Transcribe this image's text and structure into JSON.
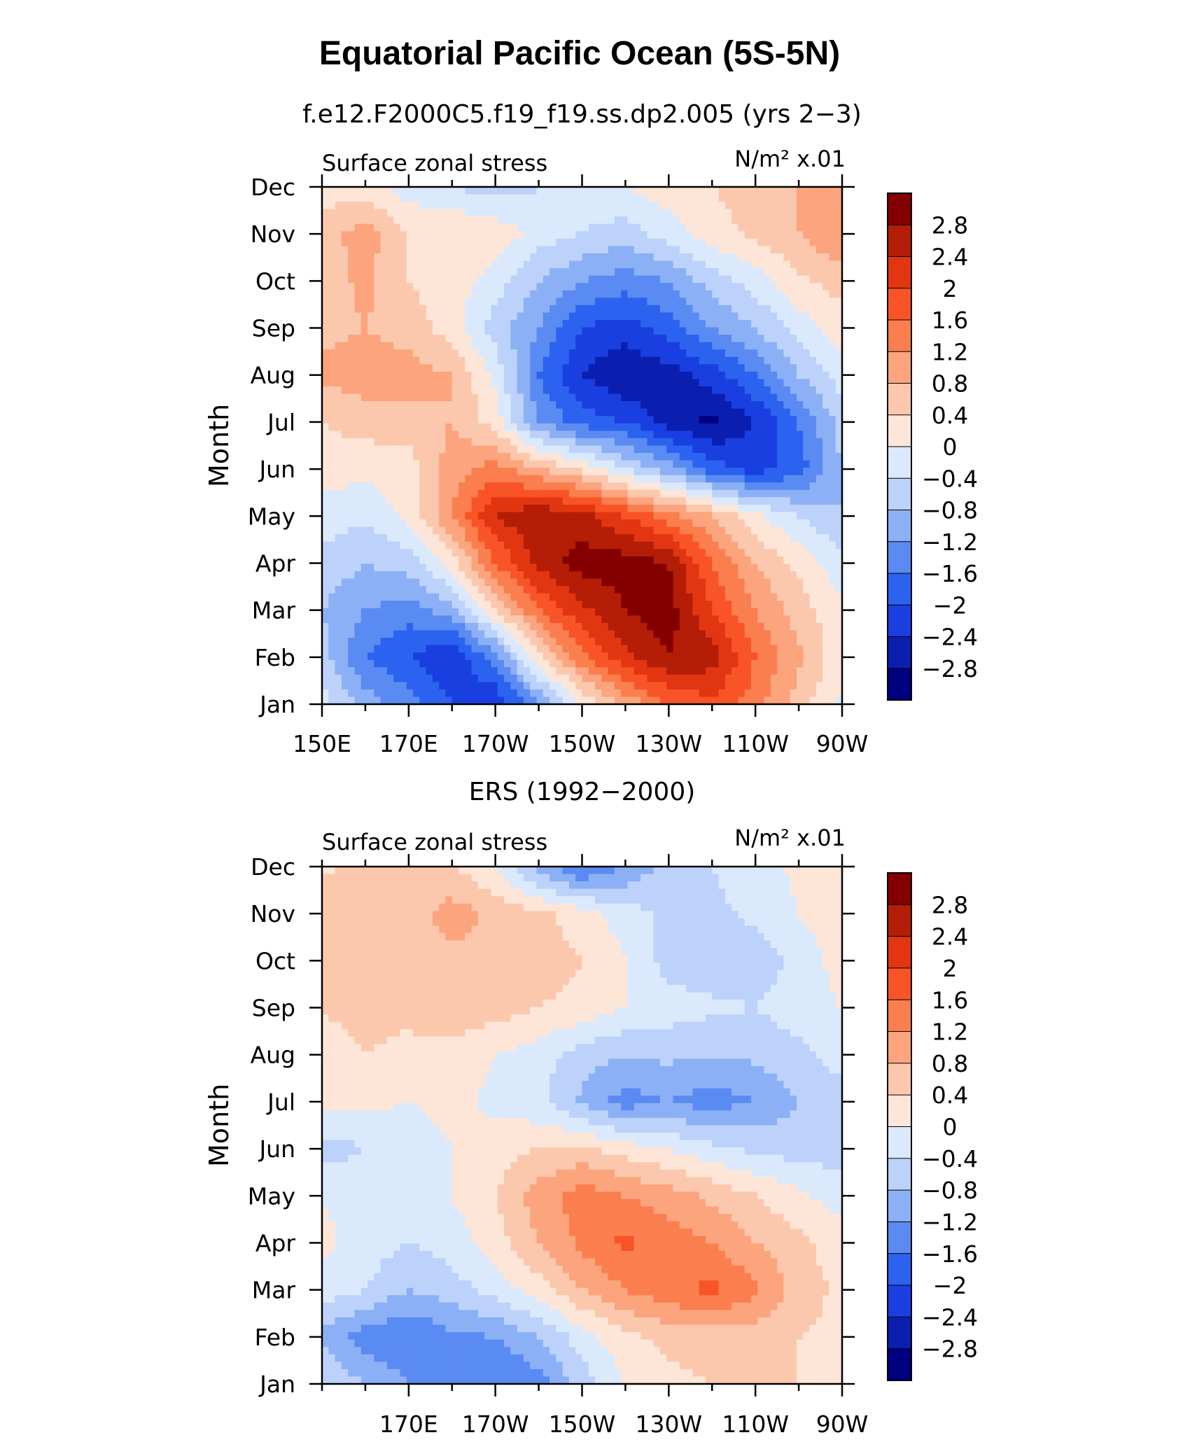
{
  "main_title": "Equatorial Pacific Ocean (5S-5N)",
  "colorbar": {
    "colors": [
      "#000080",
      "#0a1fb0",
      "#1a3fe0",
      "#2c62f0",
      "#5a8bf2",
      "#8cb0f6",
      "#bcd2fa",
      "#dbe9fc",
      "#fde6d7",
      "#fcc8ad",
      "#fca47d",
      "#fb7e4f",
      "#f85428",
      "#e23612",
      "#b41d06",
      "#840000"
    ],
    "labels": [
      "2.8",
      "2.4",
      "2",
      "1.6",
      "1.2",
      "0.8",
      "0.4",
      "0",
      "−0.4",
      "−0.8",
      "−1.2",
      "−1.6",
      "−2",
      "−2.4",
      "−2.8"
    ]
  },
  "chart_data": [
    {
      "type": "heatmap",
      "subtitle": "f.e12.F2000C5.f19_f19.ss.dp2.005 (yrs 2−3)",
      "left_label": "Surface zonal stress",
      "right_label": "N/m² x.01",
      "ylabel": "Month",
      "xlabel": "",
      "x_tick_labels": [
        "150E",
        "170E",
        "170W",
        "150W",
        "130W",
        "110W",
        "90W"
      ],
      "x_tick_lon": [
        150,
        170,
        190,
        210,
        230,
        250,
        270
      ],
      "y_tick_labels": [
        "Jan",
        "Feb",
        "Mar",
        "Apr",
        "May",
        "Jun",
        "Jul",
        "Aug",
        "Sep",
        "Oct",
        "Nov",
        "Dec"
      ],
      "xlim": [
        150,
        270
      ],
      "ylim": [
        1,
        12
      ],
      "levels": [
        -2.8,
        -2.4,
        -2,
        -1.6,
        -1.2,
        -0.8,
        -0.4,
        0,
        0.4,
        0.8,
        1.2,
        1.6,
        2,
        2.4,
        2.8
      ],
      "x": [
        150,
        160,
        170,
        180,
        190,
        200,
        210,
        220,
        230,
        240,
        250,
        260,
        270
      ],
      "y": [
        1,
        2,
        3,
        4,
        5,
        6,
        7,
        8,
        9,
        10,
        11,
        12
      ],
      "z": [
        [
          -0.2,
          -1.0,
          -1.4,
          -2.0,
          -2.4,
          -1.2,
          0.0,
          0.9,
          1.6,
          1.9,
          1.4,
          0.6,
          -0.1
        ],
        [
          -0.6,
          -1.6,
          -2.0,
          -2.4,
          -1.4,
          0.3,
          1.5,
          2.3,
          2.8,
          2.6,
          1.6,
          0.9,
          0.1
        ],
        [
          -0.8,
          -1.2,
          -1.4,
          -1.0,
          0.4,
          1.6,
          2.3,
          2.8,
          3.0,
          2.0,
          1.2,
          0.6,
          0.1
        ],
        [
          -0.5,
          -0.8,
          -0.6,
          0.2,
          1.6,
          2.5,
          3.0,
          3.0,
          2.8,
          1.6,
          0.8,
          0.3,
          -0.3
        ],
        [
          -0.2,
          -0.3,
          0.1,
          1.2,
          2.4,
          2.8,
          2.6,
          2.0,
          1.4,
          0.8,
          0.1,
          -0.4,
          -0.8
        ],
        [
          0.2,
          0.1,
          0.2,
          1.0,
          1.4,
          0.8,
          0.3,
          -0.4,
          -1.0,
          -1.8,
          -2.2,
          -1.8,
          -0.8
        ],
        [
          0.4,
          0.6,
          0.6,
          0.8,
          0.2,
          -1.2,
          -1.8,
          -2.0,
          -2.6,
          -2.9,
          -2.4,
          -1.6,
          -0.6
        ],
        [
          0.9,
          1.0,
          1.0,
          0.8,
          -0.1,
          -1.6,
          -2.4,
          -2.8,
          -2.6,
          -2.2,
          -1.6,
          -0.8,
          -0.2
        ],
        [
          0.7,
          0.8,
          0.6,
          0.2,
          -0.6,
          -1.2,
          -2.0,
          -2.2,
          -1.8,
          -1.2,
          -0.8,
          -0.2,
          0.2
        ],
        [
          0.6,
          0.9,
          0.4,
          0.2,
          -0.2,
          -0.8,
          -1.2,
          -1.4,
          -1.2,
          -0.6,
          -0.2,
          0.3,
          0.6
        ],
        [
          0.6,
          1.0,
          0.4,
          0.4,
          0.3,
          -0.2,
          -0.4,
          -0.6,
          -0.2,
          0.2,
          0.5,
          0.8,
          1.2
        ],
        [
          0.2,
          0.2,
          -0.2,
          -0.4,
          -0.6,
          -0.4,
          -0.2,
          0.0,
          0.2,
          0.4,
          0.6,
          0.8,
          0.9
        ]
      ]
    },
    {
      "type": "heatmap",
      "subtitle": "ERS (1992−2000)",
      "left_label": "Surface zonal stress",
      "right_label": "N/m² x.01",
      "ylabel": "Month",
      "xlabel": "",
      "x_tick_labels": [
        "170E",
        "170W",
        "150W",
        "130W",
        "110W",
        "90W"
      ],
      "x_tick_lon": [
        170,
        190,
        210,
        230,
        250,
        270
      ],
      "y_tick_labels": [
        "Jan",
        "Feb",
        "Mar",
        "Apr",
        "May",
        "Jun",
        "Jul",
        "Aug",
        "Sep",
        "Oct",
        "Nov",
        "Dec"
      ],
      "xlim": [
        150,
        270
      ],
      "ylim": [
        1,
        12
      ],
      "levels": [
        -2.8,
        -2.4,
        -2,
        -1.6,
        -1.2,
        -0.8,
        -0.4,
        0,
        0.4,
        0.8,
        1.2,
        1.6,
        2,
        2.4,
        2.8
      ],
      "x": [
        150,
        160,
        170,
        180,
        190,
        200,
        210,
        220,
        230,
        240,
        250,
        260,
        270
      ],
      "y": [
        1,
        2,
        3,
        4,
        5,
        6,
        7,
        8,
        9,
        10,
        11,
        12
      ],
      "z": [
        [
          -0.4,
          -0.8,
          -1.2,
          -1.6,
          -1.6,
          -1.4,
          -0.6,
          0.0,
          0.3,
          0.4,
          0.4,
          0.4,
          0.4
        ],
        [
          -0.9,
          -1.4,
          -1.6,
          -1.3,
          -1.2,
          -0.8,
          -0.2,
          0.3,
          0.5,
          0.6,
          0.6,
          0.4,
          0.3
        ],
        [
          -0.2,
          -0.4,
          -0.8,
          -0.6,
          -0.2,
          0.2,
          0.8,
          1.2,
          1.5,
          1.7,
          1.3,
          0.6,
          0.3
        ],
        [
          0.1,
          -0.2,
          -0.4,
          -0.2,
          0.2,
          0.8,
          1.3,
          1.7,
          1.4,
          1.2,
          0.8,
          0.5,
          0.2
        ],
        [
          0.0,
          -0.2,
          -0.2,
          0.0,
          0.4,
          1.0,
          1.4,
          1.2,
          1.0,
          0.7,
          0.4,
          0.1,
          -0.2
        ],
        [
          -0.6,
          -0.4,
          -0.2,
          0.0,
          0.2,
          0.4,
          0.5,
          0.2,
          0.0,
          -0.3,
          -0.5,
          -0.6,
          -0.6
        ],
        [
          0.2,
          0.1,
          0.0,
          0.1,
          -0.1,
          -0.3,
          -0.9,
          -1.4,
          -1.2,
          -1.4,
          -1.2,
          -0.8,
          -0.6
        ],
        [
          0.3,
          0.4,
          0.3,
          0.3,
          0.0,
          -0.2,
          -0.6,
          -0.8,
          -0.7,
          -0.8,
          -0.7,
          -0.5,
          -0.2
        ],
        [
          0.4,
          0.5,
          0.5,
          0.6,
          0.6,
          0.4,
          0.3,
          0.0,
          -0.2,
          -0.3,
          -0.4,
          -0.2,
          0.0
        ],
        [
          0.6,
          0.5,
          0.5,
          0.7,
          0.6,
          0.6,
          0.4,
          0.0,
          -0.6,
          -0.7,
          -0.6,
          -0.3,
          0.2
        ],
        [
          0.8,
          0.6,
          0.6,
          1.0,
          0.7,
          0.5,
          0.2,
          -0.2,
          -0.5,
          -0.5,
          -0.3,
          0.0,
          0.3
        ],
        [
          0.3,
          0.5,
          0.4,
          0.4,
          0.0,
          -1.0,
          -1.7,
          -1.2,
          -0.6,
          -0.4,
          -0.2,
          0.1,
          0.3
        ]
      ]
    }
  ]
}
